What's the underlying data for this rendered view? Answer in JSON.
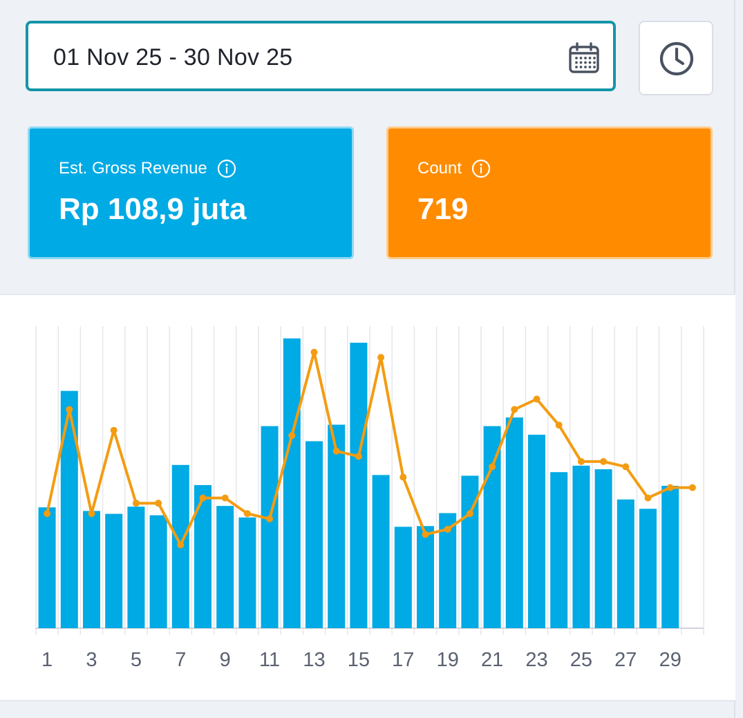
{
  "date_range": {
    "value": "01 Nov 25 - 30 Nov 25",
    "icon": "calendar-icon"
  },
  "time_button": {
    "icon": "clock-icon"
  },
  "cards": {
    "revenue": {
      "label": "Est. Gross Revenue",
      "value": "Rp 108,9 juta",
      "color": "#00aae4",
      "icon": "info-icon"
    },
    "count": {
      "label": "Count",
      "value": "719",
      "color": "#ff8c00",
      "icon": "info-icon"
    }
  },
  "chart_data": {
    "type": "bar",
    "x": [
      1,
      2,
      3,
      4,
      5,
      6,
      7,
      8,
      9,
      10,
      11,
      12,
      13,
      14,
      15,
      16,
      17,
      18,
      19,
      20,
      21,
      22,
      23,
      24,
      25,
      26,
      27,
      28,
      29,
      30
    ],
    "tick_labels": [
      "1",
      "3",
      "5",
      "7",
      "9",
      "11",
      "13",
      "15",
      "17",
      "19",
      "21",
      "23",
      "25",
      "27",
      "29"
    ],
    "series": [
      {
        "type": "bar",
        "color": "#00aae4",
        "values": [
          168,
          330,
          163,
          159,
          169,
          157,
          227,
          199,
          170,
          154,
          281,
          403,
          260,
          283,
          397,
          213,
          141,
          142,
          160,
          212,
          281,
          293,
          269,
          217,
          226,
          221,
          179,
          166,
          198,
          0
        ]
      },
      {
        "type": "line",
        "color": "#f39c12",
        "values": [
          22,
          42,
          22,
          38,
          24,
          24,
          16,
          25,
          25,
          22,
          21,
          37,
          53,
          34,
          33,
          52,
          29,
          18,
          19,
          22,
          31,
          42,
          44,
          39,
          32,
          32,
          31,
          25,
          27,
          27
        ]
      }
    ],
    "grid": "vertical",
    "legend": "none"
  }
}
